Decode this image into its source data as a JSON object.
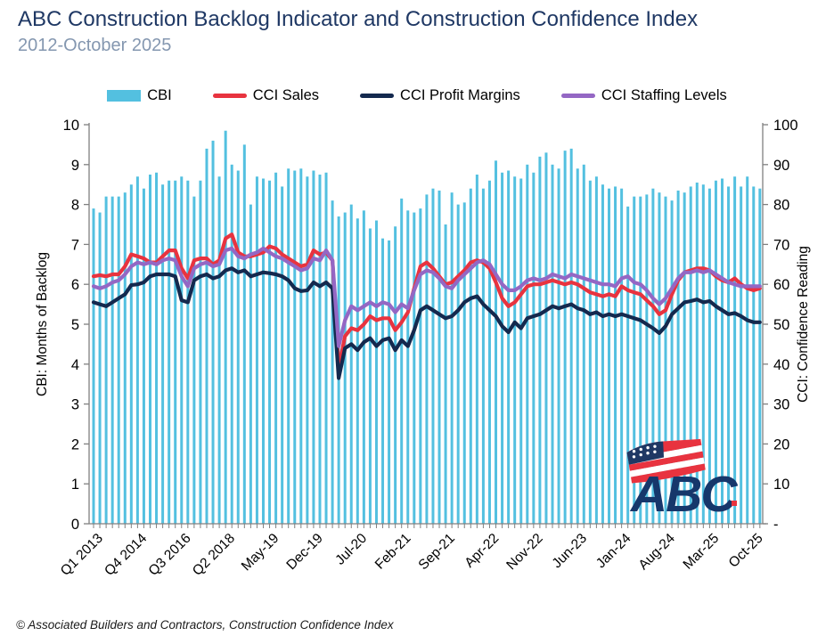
{
  "title": "ABC Construction Backlog Indicator and Construction Confidence Index",
  "subtitle": "2012-October 2025",
  "footer": "© Associated Builders and Contractors, Construction Confidence Index",
  "logo": {
    "text": "ABC"
  },
  "colors": {
    "bar": "#53C0E0",
    "sales": "#E8333F",
    "profit": "#14294E",
    "staffing": "#9467C4",
    "axis": "#808080",
    "tick_text": "#000000",
    "title": "#1F3864",
    "subtitle": "#8497B0",
    "logo_navy": "#16376B",
    "logo_red": "#E8333F"
  },
  "legend": [
    {
      "label": "CBI",
      "color": "#53C0E0",
      "swatch": "bar"
    },
    {
      "label": "CCI Sales",
      "color": "#E8333F",
      "swatch": "line"
    },
    {
      "label": "CCI Profit Margins",
      "color": "#14294E",
      "swatch": "line"
    },
    {
      "label": "CCI Staffing Levels",
      "color": "#9467C4",
      "swatch": "line"
    }
  ],
  "chart_data": {
    "type": "combo (bar + line)",
    "total_points": 107,
    "x_tick_labels": [
      "Q1 2013",
      "Q4 2014",
      "Q3 2016",
      "Q2 2018",
      "May-19",
      "Dec-19",
      "Jul-20",
      "Feb-21",
      "Sep-21",
      "Apr-22",
      "Nov-22",
      "Jun-23",
      "Jan-24",
      "Aug-24",
      "Mar-25",
      "Oct-25"
    ],
    "x_tick_indices": [
      1,
      8,
      15,
      22,
      29,
      36,
      43,
      50,
      57,
      64,
      71,
      78,
      85,
      92,
      99,
      106
    ],
    "left_axis": {
      "title": "CBI: Months of Backlog",
      "min": 0,
      "max": 10,
      "tick_labels": [
        "0",
        "1",
        "2",
        "3",
        "4",
        "5",
        "6",
        "7",
        "8",
        "9",
        "10"
      ]
    },
    "right_axis": {
      "title": "CCI: Confidence Reading",
      "min": 0,
      "max": 100,
      "tick_labels": [
        "-",
        "10",
        "20",
        "30",
        "40",
        "50",
        "60",
        "70",
        "80",
        "90",
        "100"
      ]
    },
    "grid": "off",
    "legend_position": "top",
    "bars": {
      "name": "CBI",
      "axis": "left",
      "values": [
        7.9,
        7.8,
        8.2,
        8.2,
        8.2,
        8.3,
        8.5,
        8.7,
        8.4,
        8.75,
        8.8,
        8.5,
        8.6,
        8.6,
        8.7,
        8.6,
        8.2,
        8.6,
        9.4,
        9.6,
        8.7,
        9.85,
        9.0,
        8.85,
        9.5,
        8.0,
        8.7,
        8.65,
        8.6,
        8.8,
        8.45,
        8.9,
        8.85,
        8.9,
        8.7,
        8.85,
        8.75,
        8.8,
        8.1,
        7.7,
        7.8,
        8.0,
        7.65,
        7.85,
        7.4,
        7.6,
        7.15,
        7.1,
        7.45,
        8.15,
        7.85,
        7.8,
        7.9,
        8.25,
        8.4,
        8.35,
        7.5,
        8.3,
        8.0,
        8.05,
        8.4,
        8.75,
        8.4,
        8.6,
        9.1,
        8.8,
        8.85,
        8.7,
        8.65,
        9.0,
        8.8,
        9.2,
        9.3,
        9.0,
        8.9,
        9.35,
        9.4,
        8.9,
        9.0,
        8.6,
        8.7,
        8.5,
        8.4,
        8.45,
        8.4,
        7.95,
        8.2,
        8.2,
        8.25,
        8.4,
        8.3,
        8.2,
        8.1,
        8.35,
        8.3,
        8.45,
        8.55,
        8.5,
        8.4,
        8.6,
        8.65,
        8.45,
        8.7,
        8.45,
        8.7,
        8.45,
        8.4
      ]
    },
    "series": [
      {
        "name": "CCI Sales",
        "axis": "right",
        "values": [
          62.0,
          62.3,
          62.0,
          62.5,
          62.5,
          64.5,
          67.5,
          67.0,
          66.5,
          65.5,
          65.5,
          67.0,
          68.5,
          68.5,
          64.0,
          61.5,
          66.0,
          66.5,
          66.5,
          65.0,
          66.0,
          71.5,
          72.5,
          68.0,
          67.0,
          67.0,
          67.5,
          68.0,
          69.5,
          69.0,
          67.5,
          66.5,
          65.5,
          64.5,
          65.0,
          68.5,
          67.5,
          68.0,
          66.0,
          39.0,
          47.0,
          49.0,
          48.5,
          50.0,
          52.0,
          51.0,
          51.5,
          51.5,
          48.5,
          50.5,
          53.0,
          59.0,
          64.5,
          65.5,
          64.0,
          62.0,
          60.0,
          60.5,
          62.0,
          63.5,
          65.5,
          66.0,
          65.5,
          64.0,
          60.5,
          56.5,
          54.5,
          55.5,
          57.5,
          59.5,
          60.0,
          60.0,
          60.5,
          61.0,
          60.5,
          60.0,
          60.5,
          60.0,
          59.0,
          58.0,
          57.5,
          57.0,
          57.5,
          57.0,
          59.5,
          58.5,
          58.0,
          57.5,
          56.0,
          54.5,
          52.5,
          53.5,
          57.5,
          61.0,
          63.0,
          63.5,
          64.0,
          64.0,
          63.5,
          62.0,
          61.0,
          60.5,
          61.5,
          60.0,
          59.0,
          58.5,
          59.0
        ]
      },
      {
        "name": "CCI Profit Margins",
        "axis": "right",
        "values": [
          55.5,
          55.0,
          54.5,
          55.5,
          56.5,
          57.5,
          59.8,
          60.0,
          60.5,
          62.0,
          62.5,
          62.5,
          62.5,
          62.0,
          56.0,
          55.5,
          61.0,
          62.0,
          62.5,
          61.5,
          62.0,
          63.5,
          64.0,
          63.0,
          63.5,
          62.0,
          62.5,
          63.0,
          62.8,
          62.5,
          62.0,
          61.0,
          59.0,
          58.3,
          58.5,
          60.5,
          59.5,
          60.5,
          59.0,
          36.5,
          44.0,
          45.0,
          43.5,
          45.5,
          46.5,
          44.5,
          46.0,
          46.5,
          43.5,
          46.0,
          44.5,
          48.5,
          53.5,
          54.5,
          53.5,
          52.5,
          51.5,
          52.0,
          53.5,
          55.5,
          56.5,
          57.0,
          55.0,
          53.5,
          52.0,
          49.5,
          48.0,
          50.5,
          49.0,
          51.5,
          52.0,
          52.5,
          53.5,
          54.5,
          54.0,
          54.5,
          55.0,
          54.0,
          53.5,
          52.5,
          53.0,
          52.0,
          52.5,
          52.0,
          52.5,
          52.0,
          51.5,
          51.0,
          50.0,
          49.0,
          47.8,
          49.5,
          52.5,
          54.0,
          55.5,
          55.8,
          56.2,
          55.5,
          55.8,
          54.5,
          53.5,
          52.5,
          52.8,
          52.0,
          51.0,
          50.5,
          50.5
        ]
      },
      {
        "name": "CCI Staffing Levels",
        "axis": "right",
        "values": [
          59.5,
          59.0,
          59.5,
          60.5,
          61.0,
          62.5,
          64.5,
          65.5,
          65.0,
          65.5,
          65.0,
          66.0,
          66.5,
          66.0,
          62.0,
          59.5,
          64.0,
          65.0,
          65.5,
          64.5,
          65.0,
          68.5,
          69.0,
          67.0,
          66.5,
          67.5,
          68.0,
          69.0,
          68.0,
          67.0,
          66.5,
          65.5,
          64.5,
          63.5,
          64.0,
          66.5,
          66.0,
          68.5,
          66.0,
          44.5,
          51.0,
          54.5,
          53.5,
          54.5,
          55.5,
          54.5,
          55.5,
          55.0,
          53.0,
          55.0,
          54.0,
          58.5,
          62.5,
          63.5,
          63.0,
          61.5,
          59.5,
          59.0,
          61.0,
          62.5,
          64.0,
          65.5,
          66.0,
          65.0,
          62.5,
          60.0,
          58.5,
          58.5,
          59.5,
          61.0,
          61.5,
          61.0,
          61.5,
          62.5,
          62.0,
          61.5,
          62.5,
          62.0,
          61.5,
          61.0,
          60.5,
          60.0,
          60.0,
          59.5,
          61.5,
          62.0,
          60.5,
          60.0,
          58.5,
          56.5,
          55.0,
          56.5,
          59.0,
          61.5,
          63.0,
          63.0,
          63.5,
          63.0,
          63.5,
          62.5,
          61.5,
          60.5,
          60.0,
          59.5,
          59.5,
          59.5,
          59.5
        ]
      }
    ]
  }
}
